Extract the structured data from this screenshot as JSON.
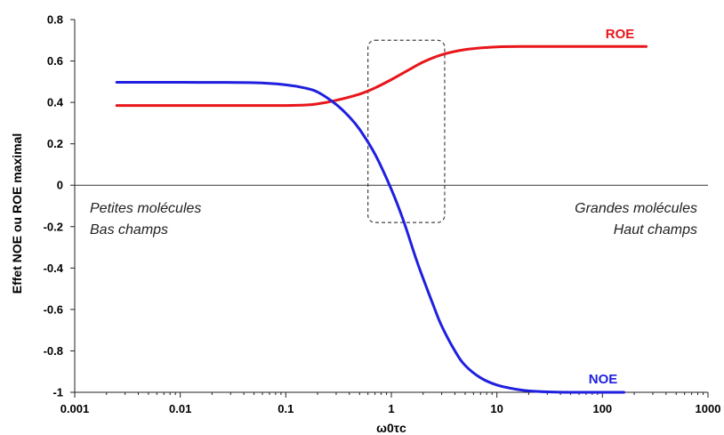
{
  "chart_data": {
    "type": "line",
    "xscale": "log",
    "xlim": [
      0.001,
      1000
    ],
    "ylim": [
      -1,
      0.8
    ],
    "x_ticks": [
      "0.001",
      "0.01",
      "0.1",
      "1",
      "10",
      "100",
      "1000"
    ],
    "y_ticks": [
      "0.8",
      "0.6",
      "0.4",
      "0.2",
      "0",
      "-0.2",
      "-0.4",
      "-0.6",
      "-0.8",
      "-1"
    ],
    "xlabel": "ω0τc",
    "ylabel": "Effet NOE ou ROE maximal",
    "grid": false,
    "series": [
      {
        "name": "ROE",
        "color": "#e8161b",
        "x": [
          0.0025,
          0.01,
          0.05,
          0.1,
          0.15,
          0.2,
          0.3,
          0.5,
          0.7,
          1,
          1.5,
          2,
          3,
          5,
          10,
          20,
          50,
          100,
          260
        ],
        "y": [
          0.385,
          0.385,
          0.385,
          0.385,
          0.387,
          0.393,
          0.41,
          0.44,
          0.47,
          0.51,
          0.56,
          0.595,
          0.63,
          0.655,
          0.668,
          0.67,
          0.67,
          0.67,
          0.67
        ]
      },
      {
        "name": "NOE",
        "color": "#1f1fdf",
        "x": [
          0.0025,
          0.01,
          0.05,
          0.1,
          0.15,
          0.2,
          0.3,
          0.4,
          0.5,
          0.7,
          1,
          1.3,
          1.7,
          2,
          2.5,
          3,
          4,
          5,
          7,
          10,
          15,
          20,
          30,
          50,
          100,
          160
        ],
        "y": [
          0.497,
          0.497,
          0.495,
          0.485,
          0.47,
          0.45,
          0.39,
          0.33,
          0.27,
          0.15,
          -0.02,
          -0.17,
          -0.35,
          -0.45,
          -0.58,
          -0.68,
          -0.8,
          -0.87,
          -0.93,
          -0.965,
          -0.985,
          -0.993,
          -0.998,
          -1.0,
          -1.0,
          -1.0
        ]
      }
    ],
    "series_labels": {
      "roe": "ROE",
      "noe": "NOE"
    },
    "annotations": {
      "left_line1": "Petites molécules",
      "left_line2": "Bas champs",
      "right_line1": "Grandes molécules",
      "right_line2": "Haut champs"
    },
    "highlight_region_x": [
      0.6,
      3.2
    ],
    "highlight_region_y": [
      -0.18,
      0.7
    ]
  }
}
